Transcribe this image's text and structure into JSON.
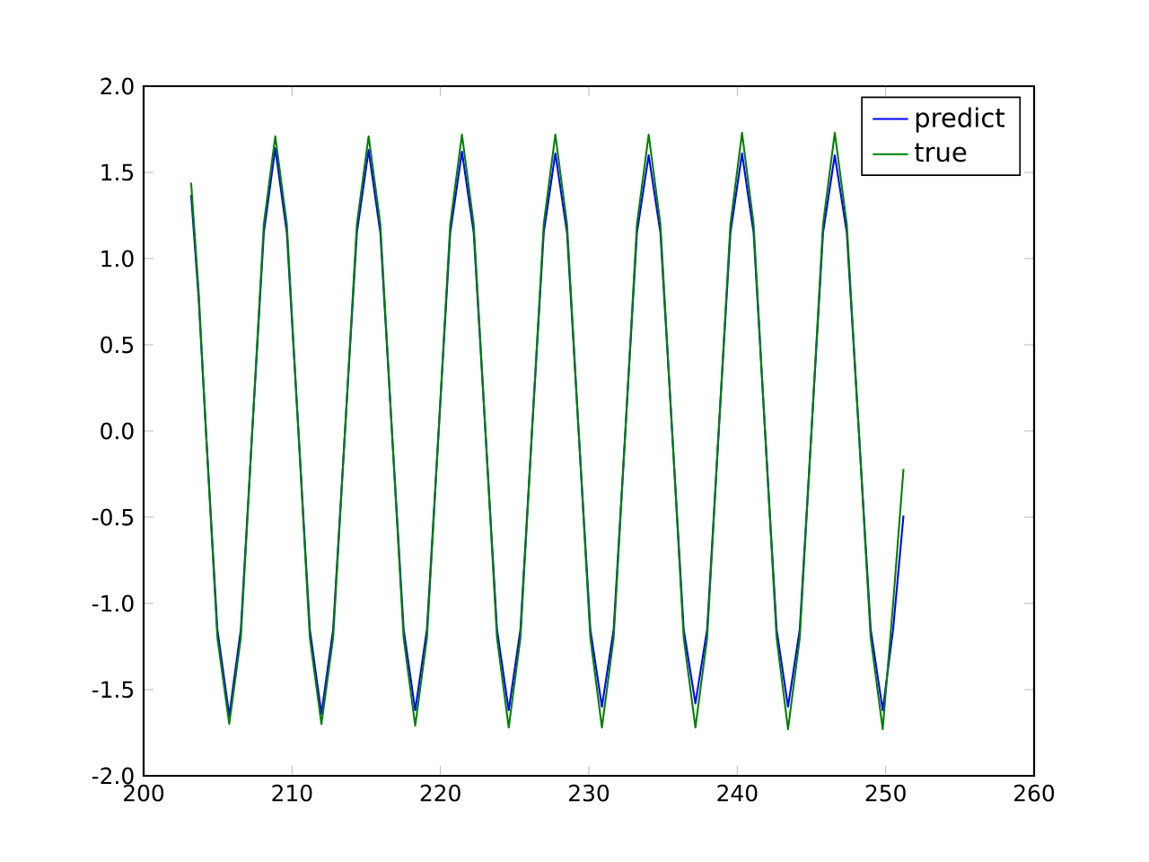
{
  "chart_data": {
    "type": "line",
    "legend": "top right",
    "grid": false,
    "marker": "none",
    "line_style": "solid",
    "xlim": [
      200,
      260
    ],
    "ylim": [
      -2.0,
      2.0
    ],
    "xticks": [
      200,
      210,
      220,
      230,
      240,
      250,
      260
    ],
    "yticks": [
      {
        "value": -2.0,
        "label": "-2.0"
      },
      {
        "value": -1.5,
        "label": "-1.5"
      },
      {
        "value": -1.0,
        "label": "-1.0"
      },
      {
        "value": -0.5,
        "label": "-0.5"
      },
      {
        "value": 0.0,
        "label": "0.0"
      },
      {
        "value": 0.5,
        "label": "0.5"
      },
      {
        "value": 1.0,
        "label": "1.0"
      },
      {
        "value": 1.5,
        "label": "1.5"
      },
      {
        "value": 2.0,
        "label": "2.0"
      }
    ],
    "x": [
      203.2,
      203.7,
      204.2,
      204.97,
      205.77,
      206.55,
      207.32,
      208.1,
      208.87,
      209.65,
      210.43,
      211.2,
      211.98,
      212.77,
      213.57,
      214.37,
      215.16,
      215.95,
      216.73,
      217.52,
      218.3,
      219.09,
      219.88,
      220.66,
      221.45,
      222.24,
      223.03,
      223.81,
      224.6,
      225.39,
      226.17,
      226.96,
      227.74,
      228.53,
      229.31,
      230.1,
      230.88,
      231.67,
      232.46,
      233.24,
      234.03,
      234.82,
      235.61,
      236.39,
      237.18,
      237.97,
      238.75,
      239.54,
      240.32,
      241.1,
      241.87,
      242.65,
      243.42,
      244.21,
      245.0,
      245.78,
      246.57,
      247.38,
      248.19,
      248.99,
      249.8,
      250.5,
      251.2
    ],
    "series": [
      {
        "name": "predict",
        "color": "#0000ff",
        "values": [
          1.37,
          0.78,
          0,
          -1.15,
          -1.65,
          -1.15,
          0,
          1.15,
          1.64,
          1.15,
          0,
          -1.15,
          -1.64,
          -1.15,
          0,
          1.15,
          1.63,
          1.15,
          0,
          -1.15,
          -1.62,
          -1.15,
          0,
          1.15,
          1.62,
          1.15,
          0,
          -1.15,
          -1.62,
          -1.15,
          0,
          1.15,
          1.61,
          1.15,
          0,
          -1.15,
          -1.6,
          -1.15,
          0,
          1.15,
          1.6,
          1.15,
          0,
          -1.15,
          -1.58,
          -1.15,
          0,
          1.15,
          1.61,
          1.15,
          0,
          -1.15,
          -1.6,
          -1.15,
          0,
          1.15,
          1.6,
          1.15,
          0,
          -1.15,
          -1.62,
          -1.15,
          -0.49
        ]
      },
      {
        "name": "true",
        "color": "#008000",
        "values": [
          1.44,
          0.82,
          0,
          -1.2,
          -1.7,
          -1.2,
          0,
          1.2,
          1.71,
          1.2,
          0,
          -1.2,
          -1.7,
          -1.2,
          0,
          1.2,
          1.71,
          1.2,
          0,
          -1.2,
          -1.71,
          -1.2,
          0,
          1.2,
          1.72,
          1.2,
          0,
          -1.2,
          -1.72,
          -1.2,
          0,
          1.2,
          1.72,
          1.2,
          0,
          -1.2,
          -1.72,
          -1.2,
          0,
          1.2,
          1.72,
          1.2,
          0,
          -1.2,
          -1.72,
          -1.2,
          0,
          1.2,
          1.73,
          1.2,
          0,
          -1.2,
          -1.73,
          -1.2,
          0,
          1.2,
          1.73,
          1.2,
          0,
          -1.2,
          -1.73,
          -1.0,
          -0.22
        ]
      }
    ]
  }
}
